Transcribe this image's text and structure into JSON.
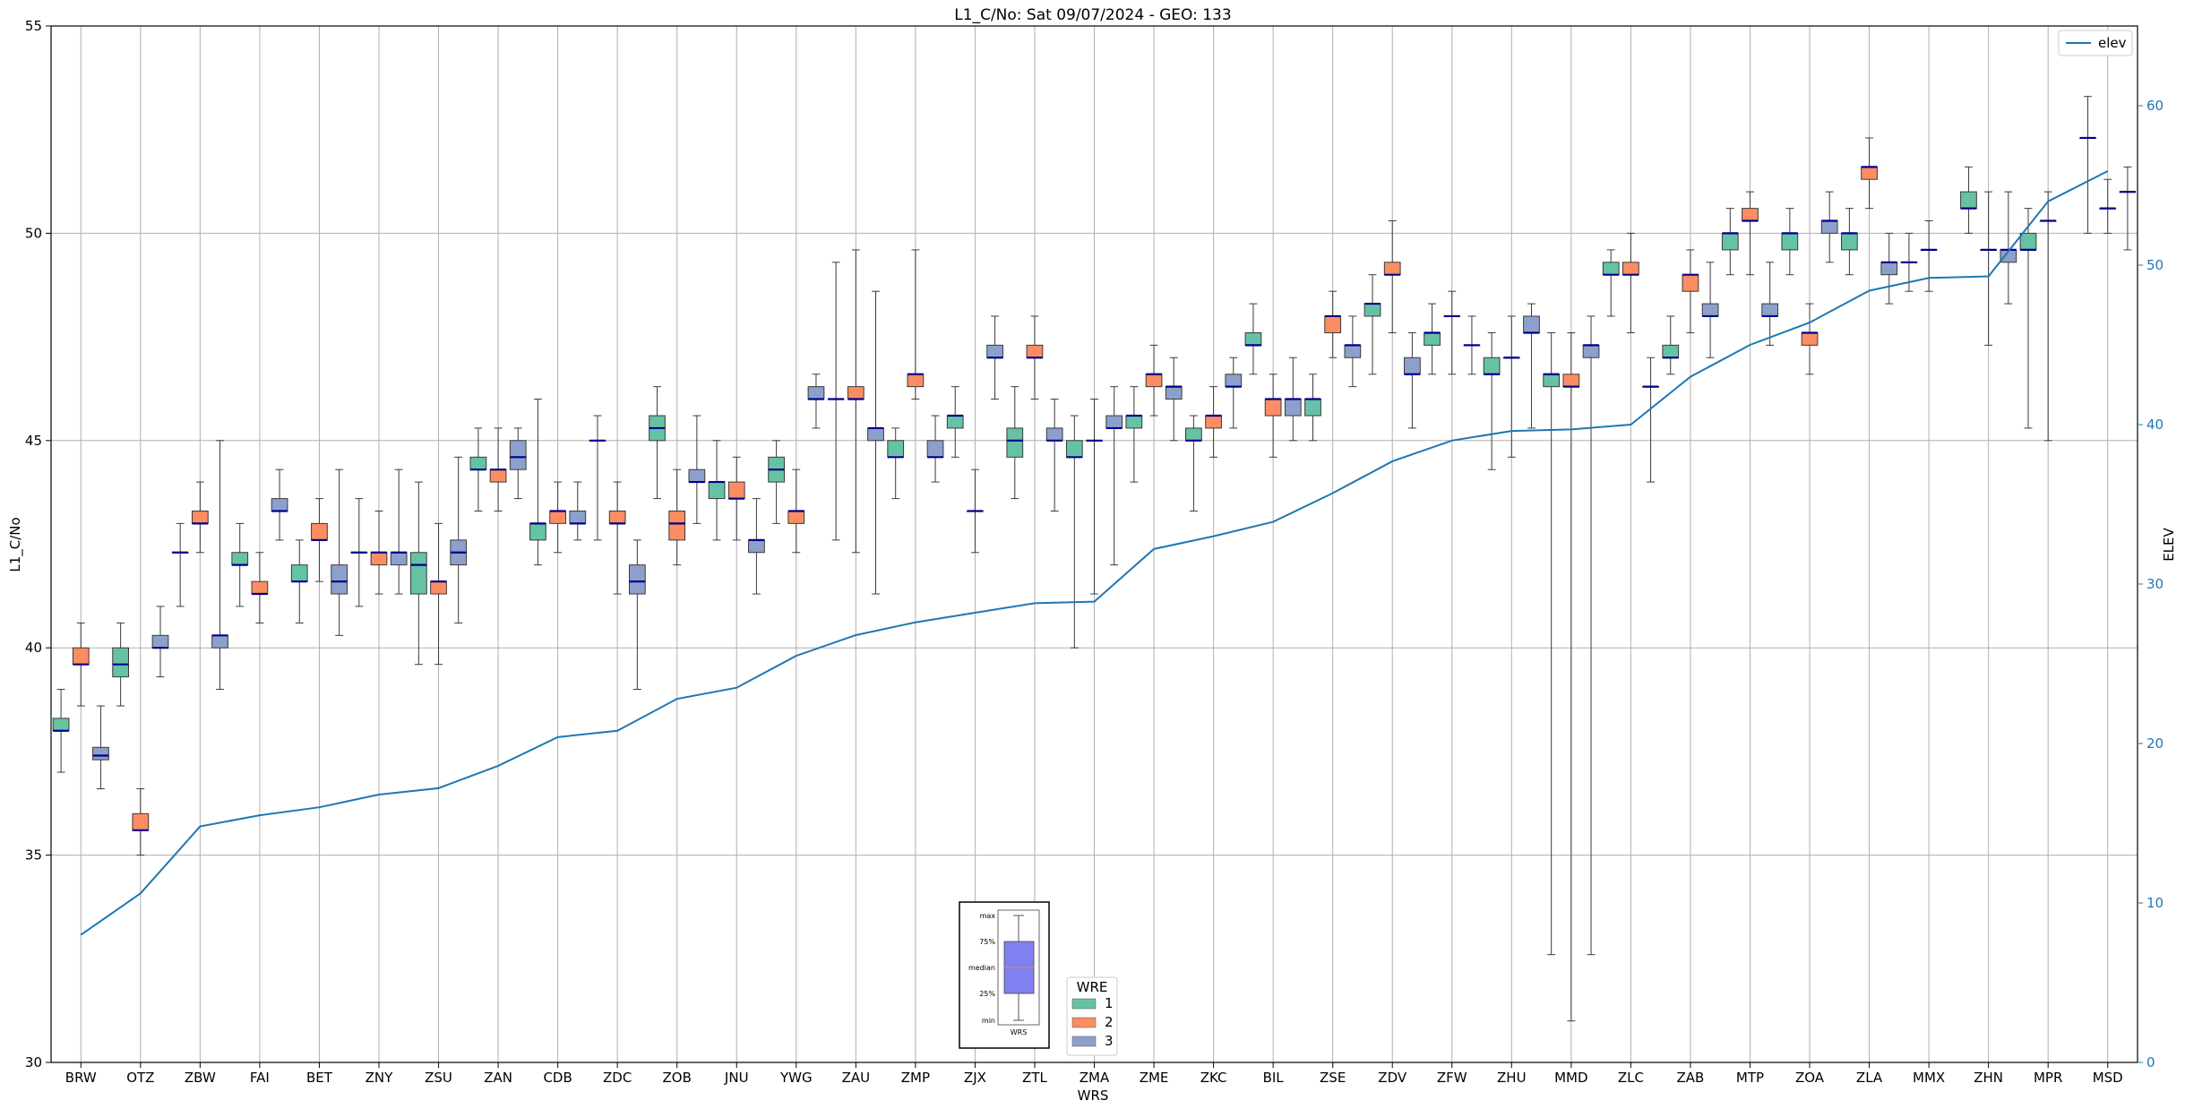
{
  "chart_data": {
    "type": "box",
    "title": "L1_C/No: Sat 09/07/2024 - GEO: 133",
    "xlabel": "WRS",
    "ylabel": "L1_C/No",
    "ylabel_right": "ELEV",
    "ylim": [
      30,
      55
    ],
    "yticks": [
      30,
      35,
      40,
      45,
      50,
      55
    ],
    "ylim_right": [
      0,
      65
    ],
    "yticks_right": [
      0,
      10,
      20,
      30,
      40,
      50,
      60
    ],
    "grid": true,
    "categories": [
      "BRW",
      "OTZ",
      "ZBW",
      "FAI",
      "BET",
      "ZNY",
      "ZSU",
      "ZAN",
      "CDB",
      "ZDC",
      "ZOB",
      "JNU",
      "YWG",
      "ZAU",
      "ZMP",
      "ZJX",
      "ZTL",
      "ZMA",
      "ZME",
      "ZKC",
      "BIL",
      "ZSE",
      "ZDV",
      "ZFW",
      "ZHU",
      "MMD",
      "ZLC",
      "ZAB",
      "MTP",
      "ZOA",
      "ZLA",
      "MMX",
      "ZHN",
      "MPR",
      "MSD"
    ],
    "group_colors": {
      "1": "#66c2a5",
      "2": "#fc8d62",
      "3": "#8da0cb"
    },
    "median_color": "#00008b",
    "boxes": [
      {
        "cat": "BRW",
        "wre": 1,
        "min": 37.0,
        "q1": 38.0,
        "median": 38.0,
        "q3": 38.3,
        "max": 39.0
      },
      {
        "cat": "BRW",
        "wre": 2,
        "min": 38.6,
        "q1": 39.6,
        "median": 39.6,
        "q3": 40.0,
        "max": 40.6
      },
      {
        "cat": "BRW",
        "wre": 3,
        "min": 36.6,
        "q1": 37.3,
        "median": 37.4,
        "q3": 37.6,
        "max": 38.6
      },
      {
        "cat": "OTZ",
        "wre": 1,
        "min": 38.6,
        "q1": 39.3,
        "median": 39.6,
        "q3": 40.0,
        "max": 40.6
      },
      {
        "cat": "OTZ",
        "wre": 2,
        "min": 35.0,
        "q1": 35.6,
        "median": 35.6,
        "q3": 36.0,
        "max": 36.6
      },
      {
        "cat": "OTZ",
        "wre": 3,
        "min": 39.3,
        "q1": 40.0,
        "median": 40.0,
        "q3": 40.3,
        "max": 41.0
      },
      {
        "cat": "ZBW",
        "wre": 1,
        "min": 41.0,
        "q1": 42.3,
        "median": 42.3,
        "q3": 42.3,
        "max": 43.0
      },
      {
        "cat": "ZBW",
        "wre": 2,
        "min": 42.3,
        "q1": 43.0,
        "median": 43.0,
        "q3": 43.3,
        "max": 44.0
      },
      {
        "cat": "ZBW",
        "wre": 3,
        "min": 39.0,
        "q1": 40.0,
        "median": 40.3,
        "q3": 40.3,
        "max": 45.0
      },
      {
        "cat": "FAI",
        "wre": 1,
        "min": 41.0,
        "q1": 42.0,
        "median": 42.0,
        "q3": 42.3,
        "max": 43.0
      },
      {
        "cat": "FAI",
        "wre": 2,
        "min": 40.6,
        "q1": 41.3,
        "median": 41.3,
        "q3": 41.6,
        "max": 42.3
      },
      {
        "cat": "FAI",
        "wre": 3,
        "min": 42.6,
        "q1": 43.3,
        "median": 43.3,
        "q3": 43.6,
        "max": 44.3
      },
      {
        "cat": "BET",
        "wre": 1,
        "min": 40.6,
        "q1": 41.6,
        "median": 41.6,
        "q3": 42.0,
        "max": 42.6
      },
      {
        "cat": "BET",
        "wre": 2,
        "min": 41.6,
        "q1": 42.6,
        "median": 42.6,
        "q3": 43.0,
        "max": 43.6
      },
      {
        "cat": "BET",
        "wre": 3,
        "min": 40.3,
        "q1": 41.3,
        "median": 41.6,
        "q3": 42.0,
        "max": 44.3
      },
      {
        "cat": "ZNY",
        "wre": 1,
        "min": 41.0,
        "q1": 42.3,
        "median": 42.3,
        "q3": 42.3,
        "max": 43.6
      },
      {
        "cat": "ZNY",
        "wre": 2,
        "min": 41.3,
        "q1": 42.0,
        "median": 42.3,
        "q3": 42.3,
        "max": 43.3
      },
      {
        "cat": "ZNY",
        "wre": 3,
        "min": 41.3,
        "q1": 42.0,
        "median": 42.3,
        "q3": 42.3,
        "max": 44.3
      },
      {
        "cat": "ZSU",
        "wre": 1,
        "min": 39.6,
        "q1": 41.3,
        "median": 42.0,
        "q3": 42.3,
        "max": 44.0
      },
      {
        "cat": "ZSU",
        "wre": 2,
        "min": 39.6,
        "q1": 41.3,
        "median": 41.6,
        "q3": 41.6,
        "max": 43.0
      },
      {
        "cat": "ZSU",
        "wre": 3,
        "min": 40.6,
        "q1": 42.0,
        "median": 42.3,
        "q3": 42.6,
        "max": 44.6
      },
      {
        "cat": "ZAN",
        "wre": 1,
        "min": 43.3,
        "q1": 44.3,
        "median": 44.3,
        "q3": 44.6,
        "max": 45.3
      },
      {
        "cat": "ZAN",
        "wre": 2,
        "min": 43.3,
        "q1": 44.0,
        "median": 44.3,
        "q3": 44.3,
        "max": 45.3
      },
      {
        "cat": "ZAN",
        "wre": 3,
        "min": 43.6,
        "q1": 44.3,
        "median": 44.6,
        "q3": 45.0,
        "max": 45.3
      },
      {
        "cat": "CDB",
        "wre": 1,
        "min": 42.0,
        "q1": 42.6,
        "median": 43.0,
        "q3": 43.0,
        "max": 46.0
      },
      {
        "cat": "CDB",
        "wre": 2,
        "min": 42.3,
        "q1": 43.0,
        "median": 43.3,
        "q3": 43.3,
        "max": 44.0
      },
      {
        "cat": "CDB",
        "wre": 3,
        "min": 42.6,
        "q1": 43.0,
        "median": 43.0,
        "q3": 43.3,
        "max": 44.0
      },
      {
        "cat": "ZDC",
        "wre": 1,
        "min": 42.6,
        "q1": 45.0,
        "median": 45.0,
        "q3": 45.0,
        "max": 45.6
      },
      {
        "cat": "ZDC",
        "wre": 2,
        "min": 41.3,
        "q1": 43.0,
        "median": 43.0,
        "q3": 43.3,
        "max": 44.0
      },
      {
        "cat": "ZDC",
        "wre": 3,
        "min": 39.0,
        "q1": 41.3,
        "median": 41.6,
        "q3": 42.0,
        "max": 42.6
      },
      {
        "cat": "ZOB",
        "wre": 1,
        "min": 43.6,
        "q1": 45.0,
        "median": 45.3,
        "q3": 45.6,
        "max": 46.3
      },
      {
        "cat": "ZOB",
        "wre": 2,
        "min": 42.0,
        "q1": 42.6,
        "median": 43.0,
        "q3": 43.3,
        "max": 44.3
      },
      {
        "cat": "ZOB",
        "wre": 3,
        "min": 43.0,
        "q1": 44.0,
        "median": 44.0,
        "q3": 44.3,
        "max": 45.6
      },
      {
        "cat": "JNU",
        "wre": 1,
        "min": 42.6,
        "q1": 43.6,
        "median": 44.0,
        "q3": 44.0,
        "max": 45.0
      },
      {
        "cat": "JNU",
        "wre": 2,
        "min": 42.6,
        "q1": 43.6,
        "median": 43.6,
        "q3": 44.0,
        "max": 44.6
      },
      {
        "cat": "JNU",
        "wre": 3,
        "min": 41.3,
        "q1": 42.3,
        "median": 42.6,
        "q3": 42.6,
        "max": 43.6
      },
      {
        "cat": "YWG",
        "wre": 1,
        "min": 43.0,
        "q1": 44.0,
        "median": 44.3,
        "q3": 44.6,
        "max": 45.0
      },
      {
        "cat": "YWG",
        "wre": 2,
        "min": 42.3,
        "q1": 43.0,
        "median": 43.3,
        "q3": 43.3,
        "max": 44.3
      },
      {
        "cat": "YWG",
        "wre": 3,
        "min": 45.3,
        "q1": 46.0,
        "median": 46.0,
        "q3": 46.3,
        "max": 46.6
      },
      {
        "cat": "ZAU",
        "wre": 1,
        "min": 42.6,
        "q1": 46.0,
        "median": 46.0,
        "q3": 46.0,
        "max": 49.3
      },
      {
        "cat": "ZAU",
        "wre": 2,
        "min": 42.3,
        "q1": 46.0,
        "median": 46.0,
        "q3": 46.3,
        "max": 49.6
      },
      {
        "cat": "ZAU",
        "wre": 3,
        "min": 41.3,
        "q1": 45.0,
        "median": 45.3,
        "q3": 45.3,
        "max": 48.6
      },
      {
        "cat": "ZMP",
        "wre": 1,
        "min": 43.6,
        "q1": 44.6,
        "median": 44.6,
        "q3": 45.0,
        "max": 45.3
      },
      {
        "cat": "ZMP",
        "wre": 2,
        "min": 46.0,
        "q1": 46.3,
        "median": 46.6,
        "q3": 46.6,
        "max": 49.6
      },
      {
        "cat": "ZMP",
        "wre": 3,
        "min": 44.0,
        "q1": 44.6,
        "median": 44.6,
        "q3": 45.0,
        "max": 45.6
      },
      {
        "cat": "ZJX",
        "wre": 1,
        "min": 44.6,
        "q1": 45.3,
        "median": 45.6,
        "q3": 45.6,
        "max": 46.3
      },
      {
        "cat": "ZJX",
        "wre": 2,
        "min": 42.3,
        "q1": 43.3,
        "median": 43.3,
        "q3": 43.3,
        "max": 44.3
      },
      {
        "cat": "ZJX",
        "wre": 3,
        "min": 46.0,
        "q1": 47.0,
        "median": 47.0,
        "q3": 47.3,
        "max": 48.0
      },
      {
        "cat": "ZTL",
        "wre": 1,
        "min": 43.6,
        "q1": 44.6,
        "median": 45.0,
        "q3": 45.3,
        "max": 46.3
      },
      {
        "cat": "ZTL",
        "wre": 2,
        "min": 46.0,
        "q1": 47.0,
        "median": 47.0,
        "q3": 47.3,
        "max": 48.0
      },
      {
        "cat": "ZTL",
        "wre": 3,
        "min": 43.3,
        "q1": 45.0,
        "median": 45.0,
        "q3": 45.3,
        "max": 46.0
      },
      {
        "cat": "ZMA",
        "wre": 1,
        "min": 40.0,
        "q1": 44.6,
        "median": 44.6,
        "q3": 45.0,
        "max": 45.6
      },
      {
        "cat": "ZMA",
        "wre": 2,
        "min": 41.3,
        "q1": 45.0,
        "median": 45.0,
        "q3": 45.0,
        "max": 46.0
      },
      {
        "cat": "ZMA",
        "wre": 3,
        "min": 42.0,
        "q1": 45.3,
        "median": 45.3,
        "q3": 45.6,
        "max": 46.3
      },
      {
        "cat": "ZME",
        "wre": 1,
        "min": 44.0,
        "q1": 45.3,
        "median": 45.6,
        "q3": 45.6,
        "max": 46.3
      },
      {
        "cat": "ZME",
        "wre": 2,
        "min": 45.6,
        "q1": 46.3,
        "median": 46.6,
        "q3": 46.6,
        "max": 47.3
      },
      {
        "cat": "ZME",
        "wre": 3,
        "min": 45.0,
        "q1": 46.0,
        "median": 46.3,
        "q3": 46.3,
        "max": 47.0
      },
      {
        "cat": "ZKC",
        "wre": 1,
        "min": 43.3,
        "q1": 45.0,
        "median": 45.0,
        "q3": 45.3,
        "max": 45.6
      },
      {
        "cat": "ZKC",
        "wre": 2,
        "min": 44.6,
        "q1": 45.3,
        "median": 45.6,
        "q3": 45.6,
        "max": 46.3
      },
      {
        "cat": "ZKC",
        "wre": 3,
        "min": 45.3,
        "q1": 46.3,
        "median": 46.3,
        "q3": 46.6,
        "max": 47.0
      },
      {
        "cat": "BIL",
        "wre": 1,
        "min": 46.6,
        "q1": 47.3,
        "median": 47.3,
        "q3": 47.6,
        "max": 48.3
      },
      {
        "cat": "BIL",
        "wre": 2,
        "min": 44.6,
        "q1": 45.6,
        "median": 46.0,
        "q3": 46.0,
        "max": 46.6
      },
      {
        "cat": "BIL",
        "wre": 3,
        "min": 45.0,
        "q1": 45.6,
        "median": 46.0,
        "q3": 46.0,
        "max": 47.0
      },
      {
        "cat": "ZSE",
        "wre": 1,
        "min": 45.0,
        "q1": 45.6,
        "median": 46.0,
        "q3": 46.0,
        "max": 46.6
      },
      {
        "cat": "ZSE",
        "wre": 2,
        "min": 47.0,
        "q1": 47.6,
        "median": 48.0,
        "q3": 48.0,
        "max": 48.6
      },
      {
        "cat": "ZSE",
        "wre": 3,
        "min": 46.3,
        "q1": 47.0,
        "median": 47.3,
        "q3": 47.3,
        "max": 48.0
      },
      {
        "cat": "ZDV",
        "wre": 1,
        "min": 46.6,
        "q1": 48.0,
        "median": 48.3,
        "q3": 48.3,
        "max": 49.0
      },
      {
        "cat": "ZDV",
        "wre": 2,
        "min": 47.6,
        "q1": 49.0,
        "median": 49.0,
        "q3": 49.3,
        "max": 50.3
      },
      {
        "cat": "ZDV",
        "wre": 3,
        "min": 45.3,
        "q1": 46.6,
        "median": 46.6,
        "q3": 47.0,
        "max": 47.6
      },
      {
        "cat": "ZFW",
        "wre": 1,
        "min": 46.6,
        "q1": 47.3,
        "median": 47.6,
        "q3": 47.6,
        "max": 48.3
      },
      {
        "cat": "ZFW",
        "wre": 2,
        "min": 46.6,
        "q1": 48.0,
        "median": 48.0,
        "q3": 48.0,
        "max": 48.6
      },
      {
        "cat": "ZFW",
        "wre": 3,
        "min": 46.6,
        "q1": 47.3,
        "median": 47.3,
        "q3": 47.3,
        "max": 48.0
      },
      {
        "cat": "ZHU",
        "wre": 1,
        "min": 44.3,
        "q1": 46.6,
        "median": 46.6,
        "q3": 47.0,
        "max": 47.6
      },
      {
        "cat": "ZHU",
        "wre": 2,
        "min": 44.6,
        "q1": 47.0,
        "median": 47.0,
        "q3": 47.0,
        "max": 48.0
      },
      {
        "cat": "ZHU",
        "wre": 3,
        "min": 45.3,
        "q1": 47.6,
        "median": 47.6,
        "q3": 48.0,
        "max": 48.3
      },
      {
        "cat": "MMD",
        "wre": 1,
        "min": 32.6,
        "q1": 46.3,
        "median": 46.6,
        "q3": 46.6,
        "max": 47.6
      },
      {
        "cat": "MMD",
        "wre": 2,
        "min": 31.0,
        "q1": 46.3,
        "median": 46.3,
        "q3": 46.6,
        "max": 47.6
      },
      {
        "cat": "MMD",
        "wre": 3,
        "min": 32.6,
        "q1": 47.0,
        "median": 47.3,
        "q3": 47.3,
        "max": 48.0
      },
      {
        "cat": "ZLC",
        "wre": 1,
        "min": 48.0,
        "q1": 49.0,
        "median": 49.0,
        "q3": 49.3,
        "max": 49.6
      },
      {
        "cat": "ZLC",
        "wre": 2,
        "min": 47.6,
        "q1": 49.0,
        "median": 49.0,
        "q3": 49.3,
        "max": 50.0
      },
      {
        "cat": "ZLC",
        "wre": 3,
        "min": 44.0,
        "q1": 46.3,
        "median": 46.3,
        "q3": 46.3,
        "max": 47.0
      },
      {
        "cat": "ZAB",
        "wre": 1,
        "min": 46.6,
        "q1": 47.0,
        "median": 47.0,
        "q3": 47.3,
        "max": 48.0
      },
      {
        "cat": "ZAB",
        "wre": 2,
        "min": 47.6,
        "q1": 48.6,
        "median": 49.0,
        "q3": 49.0,
        "max": 49.6
      },
      {
        "cat": "ZAB",
        "wre": 3,
        "min": 47.0,
        "q1": 48.0,
        "median": 48.0,
        "q3": 48.3,
        "max": 49.3
      },
      {
        "cat": "MTP",
        "wre": 1,
        "min": 49.0,
        "q1": 49.6,
        "median": 50.0,
        "q3": 50.0,
        "max": 50.6
      },
      {
        "cat": "MTP",
        "wre": 2,
        "min": 49.0,
        "q1": 50.3,
        "median": 50.3,
        "q3": 50.6,
        "max": 51.0
      },
      {
        "cat": "MTP",
        "wre": 3,
        "min": 47.3,
        "q1": 48.0,
        "median": 48.0,
        "q3": 48.3,
        "max": 49.3
      },
      {
        "cat": "ZOA",
        "wre": 1,
        "min": 49.0,
        "q1": 49.6,
        "median": 50.0,
        "q3": 50.0,
        "max": 50.6
      },
      {
        "cat": "ZOA",
        "wre": 2,
        "min": 46.6,
        "q1": 47.3,
        "median": 47.6,
        "q3": 47.6,
        "max": 48.3
      },
      {
        "cat": "ZOA",
        "wre": 3,
        "min": 49.3,
        "q1": 50.0,
        "median": 50.3,
        "q3": 50.3,
        "max": 51.0
      },
      {
        "cat": "ZLA",
        "wre": 1,
        "min": 49.0,
        "q1": 49.6,
        "median": 50.0,
        "q3": 50.0,
        "max": 50.6
      },
      {
        "cat": "ZLA",
        "wre": 2,
        "min": 50.6,
        "q1": 51.3,
        "median": 51.6,
        "q3": 51.6,
        "max": 52.3
      },
      {
        "cat": "ZLA",
        "wre": 3,
        "min": 48.3,
        "q1": 49.0,
        "median": 49.3,
        "q3": 49.3,
        "max": 50.0
      },
      {
        "cat": "MMX",
        "wre": 1,
        "min": 48.6,
        "q1": 49.3,
        "median": 49.3,
        "q3": 49.3,
        "max": 50.0
      },
      {
        "cat": "MMX",
        "wre": 2,
        "min": 48.6,
        "q1": 49.6,
        "median": 49.6,
        "q3": 49.6,
        "max": 50.3
      },
      {
        "cat": "ZHN",
        "wre": 1,
        "min": 50.0,
        "q1": 50.6,
        "median": 50.6,
        "q3": 51.0,
        "max": 51.6
      },
      {
        "cat": "ZHN",
        "wre": 2,
        "min": 47.3,
        "q1": 49.6,
        "median": 49.6,
        "q3": 49.6,
        "max": 51.0
      },
      {
        "cat": "ZHN",
        "wre": 3,
        "min": 48.3,
        "q1": 49.3,
        "median": 49.6,
        "q3": 49.6,
        "max": 51.0
      },
      {
        "cat": "MPR",
        "wre": 1,
        "min": 45.3,
        "q1": 49.6,
        "median": 49.6,
        "q3": 50.0,
        "max": 50.6
      },
      {
        "cat": "MPR",
        "wre": 2,
        "min": 45.0,
        "q1": 50.3,
        "median": 50.3,
        "q3": 50.3,
        "max": 51.0
      },
      {
        "cat": "MSD",
        "wre": 1,
        "min": 50.0,
        "q1": 52.3,
        "median": 52.3,
        "q3": 52.3,
        "max": 53.3
      },
      {
        "cat": "MSD",
        "wre": 2,
        "min": 50.0,
        "q1": 50.6,
        "median": 50.6,
        "q3": 50.6,
        "max": 51.3
      },
      {
        "cat": "MSD",
        "wre": 3,
        "min": 49.6,
        "q1": 51.0,
        "median": 51.0,
        "q3": 51.0,
        "max": 51.6
      }
    ],
    "elev_series": {
      "name": "elev",
      "color": "#1f77b4",
      "values": [
        8.0,
        10.6,
        14.8,
        15.5,
        16.0,
        16.8,
        17.2,
        18.6,
        20.4,
        20.8,
        22.8,
        23.5,
        25.5,
        26.8,
        27.6,
        28.2,
        28.8,
        28.9,
        32.2,
        33.0,
        33.9,
        35.7,
        37.7,
        39.0,
        39.6,
        39.7,
        40.0,
        43.0,
        45.0,
        46.4,
        48.4,
        49.2,
        49.3,
        54.0,
        55.9
      ]
    },
    "legend_elev": {
      "label": "elev",
      "placement": "top-right"
    },
    "legend_wre": {
      "title": "WRE",
      "entries": [
        "1",
        "2",
        "3"
      ],
      "placement": "lower-center"
    },
    "inset": {
      "labels": [
        "max",
        "75%",
        "median",
        "25%",
        "min"
      ],
      "xlabel": "WRS",
      "fill": "#8080f0"
    }
  }
}
